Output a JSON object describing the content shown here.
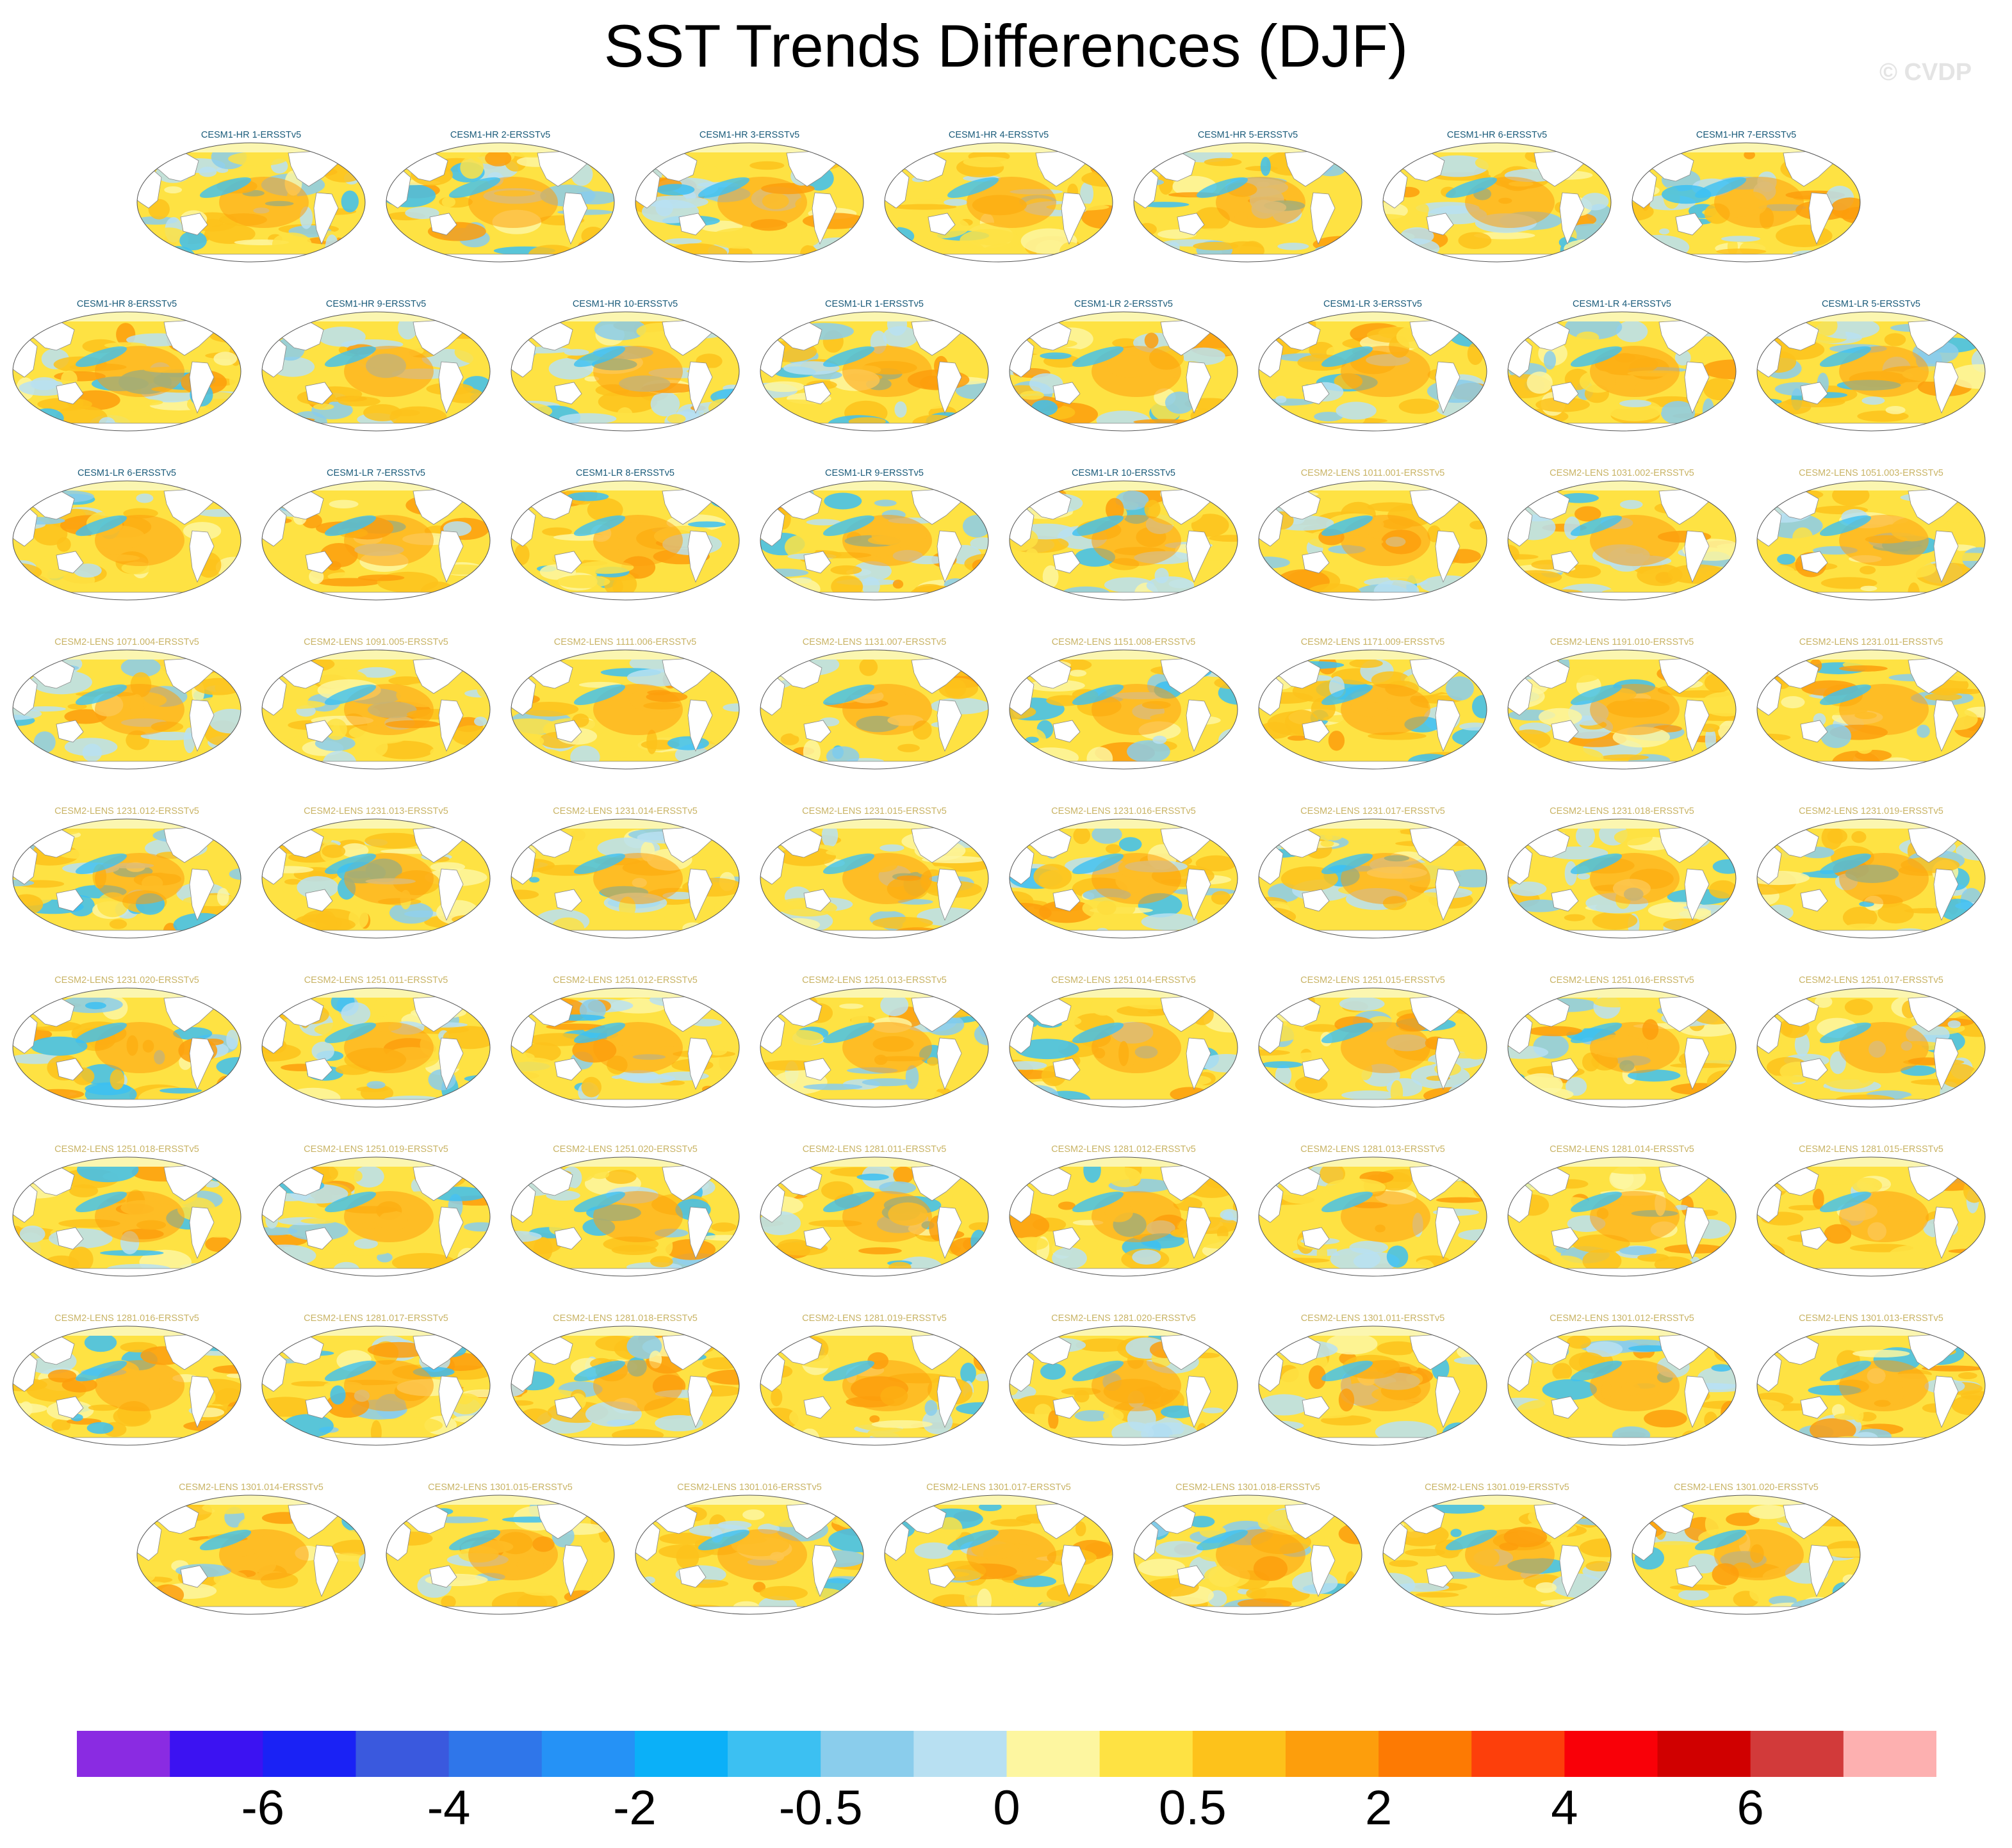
{
  "title": "SST Trends Differences (DJF)",
  "watermark": "© CVDP",
  "chart_data": {
    "type": "heatmap",
    "title": "SST Trends Differences (DJF)",
    "projection": "global map, Pacific-centered",
    "colors": {
      "label_cesm1": "#1a5b7a",
      "label_cesm2": "#c9b466",
      "land": "#ffffff",
      "coast": "#888888",
      "missing_arctic": "#fbf6b0"
    },
    "panels": [
      "CESM1-HR 1-ERSSTv5",
      "CESM1-HR 2-ERSSTv5",
      "CESM1-HR 3-ERSSTv5",
      "CESM1-HR 4-ERSSTv5",
      "CESM1-HR 5-ERSSTv5",
      "CESM1-HR 6-ERSSTv5",
      "CESM1-HR 7-ERSSTv5",
      "CESM1-HR 8-ERSSTv5",
      "CESM1-HR 9-ERSSTv5",
      "CESM1-HR 10-ERSSTv5",
      "CESM1-LR 1-ERSSTv5",
      "CESM1-LR 2-ERSSTv5",
      "CESM1-LR 3-ERSSTv5",
      "CESM1-LR 4-ERSSTv5",
      "CESM1-LR 5-ERSSTv5",
      "CESM1-LR 6-ERSSTv5",
      "CESM1-LR 7-ERSSTv5",
      "CESM1-LR 8-ERSSTv5",
      "CESM1-LR 9-ERSSTv5",
      "CESM1-LR 10-ERSSTv5",
      "CESM2-LENS 1011.001-ERSSTv5",
      "CESM2-LENS 1031.002-ERSSTv5",
      "CESM2-LENS 1051.003-ERSSTv5",
      "CESM2-LENS 1071.004-ERSSTv5",
      "CESM2-LENS 1091.005-ERSSTv5",
      "CESM2-LENS 1111.006-ERSSTv5",
      "CESM2-LENS 1131.007-ERSSTv5",
      "CESM2-LENS 1151.008-ERSSTv5",
      "CESM2-LENS 1171.009-ERSSTv5",
      "CESM2-LENS 1191.010-ERSSTv5",
      "CESM2-LENS 1231.011-ERSSTv5",
      "CESM2-LENS 1231.012-ERSSTv5",
      "CESM2-LENS 1231.013-ERSSTv5",
      "CESM2-LENS 1231.014-ERSSTv5",
      "CESM2-LENS 1231.015-ERSSTv5",
      "CESM2-LENS 1231.016-ERSSTv5",
      "CESM2-LENS 1231.017-ERSSTv5",
      "CESM2-LENS 1231.018-ERSSTv5",
      "CESM2-LENS 1231.019-ERSSTv5",
      "CESM2-LENS 1231.020-ERSSTv5",
      "CESM2-LENS 1251.011-ERSSTv5",
      "CESM2-LENS 1251.012-ERSSTv5",
      "CESM2-LENS 1251.013-ERSSTv5",
      "CESM2-LENS 1251.014-ERSSTv5",
      "CESM2-LENS 1251.015-ERSSTv5",
      "CESM2-LENS 1251.016-ERSSTv5",
      "CESM2-LENS 1251.017-ERSSTv5",
      "CESM2-LENS 1251.018-ERSSTv5",
      "CESM2-LENS 1251.019-ERSSTv5",
      "CESM2-LENS 1251.020-ERSSTv5",
      "CESM2-LENS 1281.011-ERSSTv5",
      "CESM2-LENS 1281.012-ERSSTv5",
      "CESM2-LENS 1281.013-ERSSTv5",
      "CESM2-LENS 1281.014-ERSSTv5",
      "CESM2-LENS 1281.015-ERSSTv5",
      "CESM2-LENS 1281.016-ERSSTv5",
      "CESM2-LENS 1281.017-ERSSTv5",
      "CESM2-LENS 1281.018-ERSSTv5",
      "CESM2-LENS 1281.019-ERSSTv5",
      "CESM2-LENS 1281.020-ERSSTv5",
      "CESM2-LENS 1301.011-ERSSTv5",
      "CESM2-LENS 1301.012-ERSSTv5",
      "CESM2-LENS 1301.013-ERSSTv5",
      "CESM2-LENS 1301.014-ERSSTv5",
      "CESM2-LENS 1301.015-ERSSTv5",
      "CESM2-LENS 1301.016-ERSSTv5",
      "CESM2-LENS 1301.017-ERSSTv5",
      "CESM2-LENS 1301.018-ERSSTv5",
      "CESM2-LENS 1301.019-ERSSTv5",
      "CESM2-LENS 1301.020-ERSSTv5"
    ],
    "colorbar": {
      "colors": [
        "#8a2be2",
        "#3c12f2",
        "#1a22f5",
        "#3a59de",
        "#2f76ea",
        "#2592f6",
        "#0bb0f8",
        "#3cc0f2",
        "#8acdec",
        "#b8e0f2",
        "#fdf6a0",
        "#fee243",
        "#fdc21b",
        "#fd9e0c",
        "#fd7a03",
        "#fd3f0b",
        "#f90008",
        "#d00000",
        "#d23a3a",
        "#fdb0b0"
      ],
      "tick_labels": [
        "-6",
        "-4",
        "-2",
        "-0.5",
        "0",
        "0.5",
        "2",
        "4",
        "6"
      ]
    },
    "grid": false
  }
}
